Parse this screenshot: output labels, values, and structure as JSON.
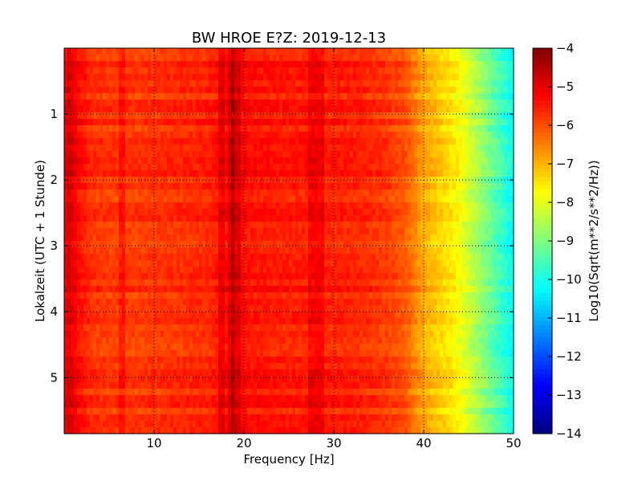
{
  "chart_data": {
    "type": "heatmap",
    "title": "BW HROE E?Z: 2019-12-13",
    "xlabel": "Frequency [Hz]",
    "ylabel": "Lokalzeit (UTC + 1 Stunde)",
    "colorbar_label": "Log10(Sqrt(m**2/s**2/Hz))",
    "colormap": "jet",
    "xlim": [
      0,
      50
    ],
    "ylim": [
      5.85,
      0
    ],
    "x_ticks": [
      10,
      20,
      30,
      40,
      50
    ],
    "y_ticks": [
      1,
      2,
      3,
      4,
      5
    ],
    "colorbar_range": [
      -14,
      -4
    ],
    "colorbar_ticks": [
      -4,
      -5,
      -6,
      -7,
      -8,
      -9,
      -10,
      -11,
      -12,
      -13,
      -14
    ],
    "grid": true,
    "frequency_profile_hz": [
      0,
      0.5,
      1.5,
      3,
      5,
      8,
      12,
      16,
      18,
      19.2,
      20.5,
      24,
      28,
      33,
      36,
      38,
      39,
      40,
      41,
      42,
      43,
      44,
      45,
      46,
      47,
      48,
      49,
      50
    ],
    "frequency_profile_level": [
      -5.2,
      -4.8,
      -5.3,
      -5.7,
      -5.8,
      -5.8,
      -5.7,
      -5.6,
      -5.3,
      -5.2,
      -5.4,
      -5.5,
      -5.5,
      -5.6,
      -5.8,
      -6.1,
      -6.5,
      -6.9,
      -7.1,
      -7.3,
      -7.5,
      -7.8,
      -8.2,
      -8.6,
      -9.0,
      -9.4,
      -9.8,
      -10.2
    ],
    "narrowband_lines_hz": [
      6.5,
      17.5,
      18.6,
      19.2,
      27.5,
      28.3
    ],
    "colors": {
      "frame": "#000000",
      "grid": "#000000",
      "background": "#ffffff"
    }
  }
}
